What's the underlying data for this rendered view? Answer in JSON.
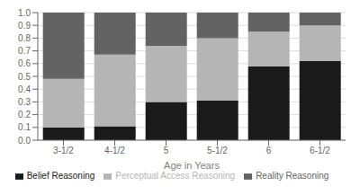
{
  "chart_data": {
    "type": "bar",
    "xlabel": "Age in Years",
    "categories": [
      "3-1/2",
      "4-1/2",
      "5",
      "5-1/2",
      "6",
      "6-1/2"
    ],
    "series": [
      {
        "name": "Belief Reasoning",
        "color": "#1a1a1a",
        "values": [
          0.1,
          0.11,
          0.3,
          0.31,
          0.58,
          0.62
        ]
      },
      {
        "name": "Perceptual Access Reasoning",
        "color": "#b5b5b5",
        "values": [
          0.38,
          0.56,
          0.44,
          0.49,
          0.27,
          0.28
        ]
      },
      {
        "name": "Reality Reasoning",
        "color": "#636363",
        "values": [
          0.52,
          0.33,
          0.26,
          0.2,
          0.15,
          0.1
        ]
      }
    ],
    "stacked": true,
    "ylim": [
      0,
      1
    ],
    "yticks": [
      {
        "value": 0,
        "label": "0.0"
      },
      0.1,
      0.2,
      0.3,
      0.4,
      0.5,
      0.6,
      0.7,
      0.8,
      0.9,
      {
        "value": 1,
        "label": "1.0"
      }
    ],
    "grid": true,
    "legend": "bottom"
  }
}
